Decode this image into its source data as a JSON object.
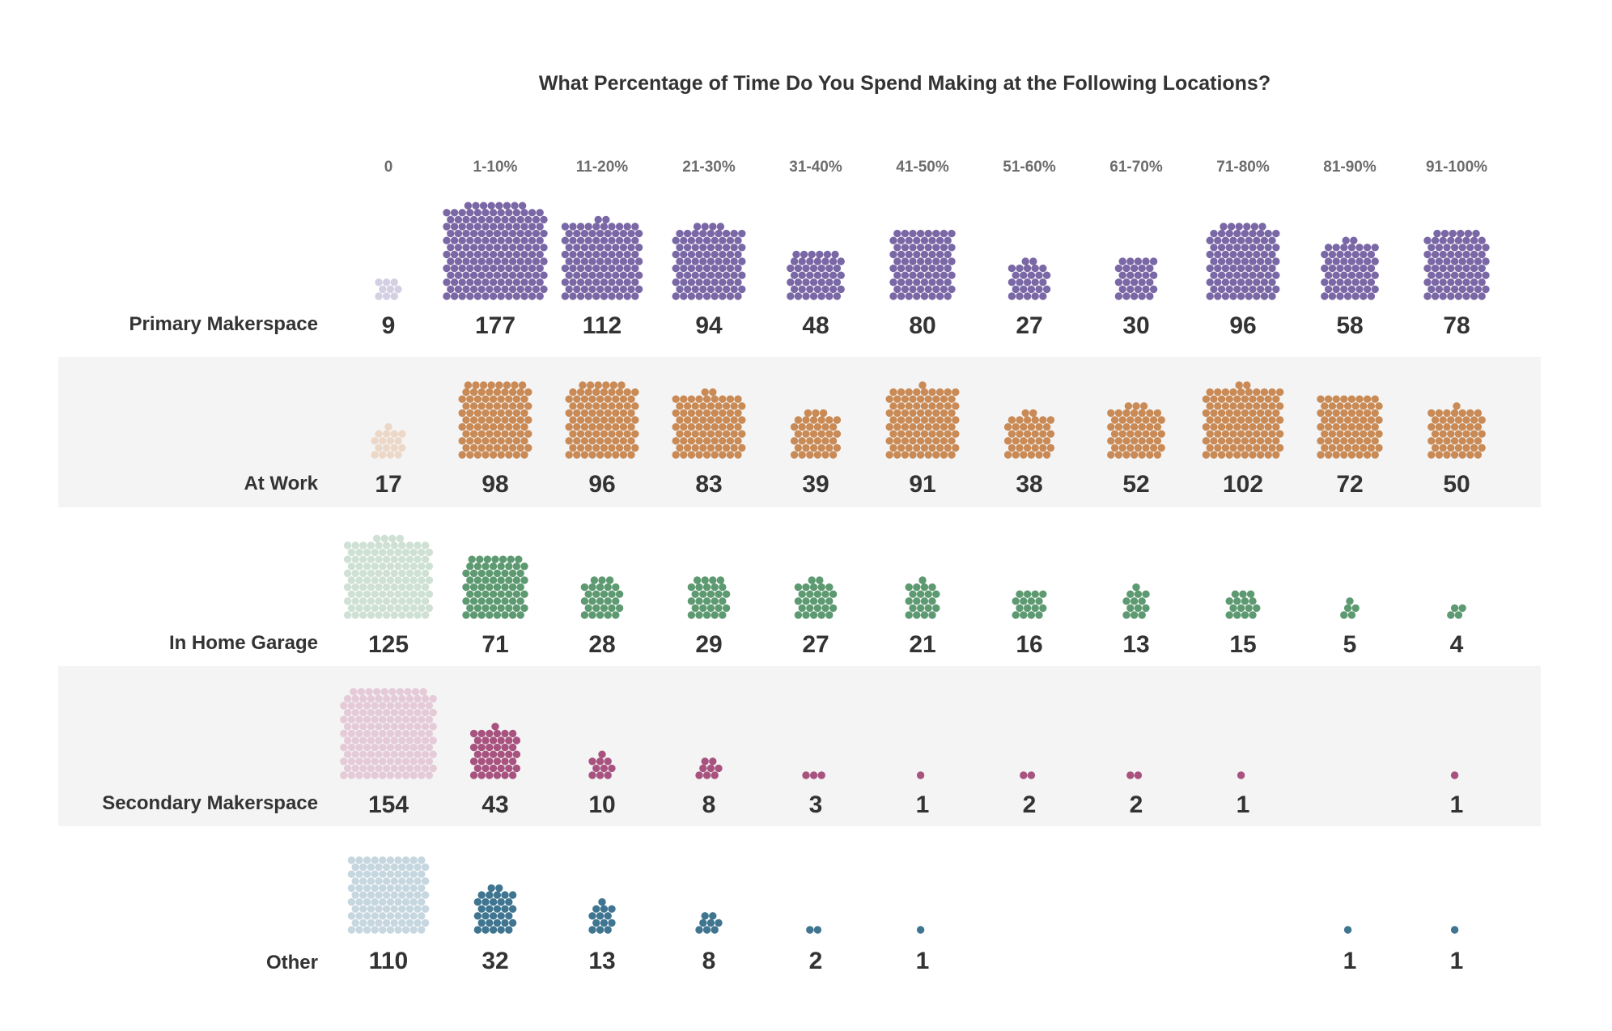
{
  "chart_data": {
    "type": "dot-grid",
    "title": "What Percentage of Time Do You Spend Making at the Following Locations?",
    "categories": [
      "0",
      "1-10%",
      "11-20%",
      "21-30%",
      "31-40%",
      "41-50%",
      "51-60%",
      "61-70%",
      "71-80%",
      "81-90%",
      "91-100%"
    ],
    "series": [
      {
        "name": "Primary Makerspace",
        "color": "#7a68a6",
        "zero_color": "#d5cfe4",
        "shaded": false,
        "values": [
          9,
          177,
          112,
          94,
          48,
          80,
          27,
          30,
          96,
          58,
          78
        ]
      },
      {
        "name": "At Work",
        "color": "#c98a55",
        "zero_color": "#edd8c8",
        "shaded": true,
        "values": [
          17,
          98,
          96,
          83,
          39,
          91,
          38,
          52,
          102,
          72,
          50
        ]
      },
      {
        "name": "In Home Garage",
        "color": "#5e9a71",
        "zero_color": "#cfe1d4",
        "shaded": false,
        "values": [
          125,
          71,
          28,
          29,
          27,
          21,
          16,
          13,
          15,
          5,
          4
        ]
      },
      {
        "name": "Secondary Makerspace",
        "color": "#a8537f",
        "zero_color": "#e5cbd8",
        "shaded": true,
        "values": [
          154,
          43,
          10,
          8,
          3,
          1,
          2,
          2,
          1,
          0,
          1
        ]
      },
      {
        "name": "Other",
        "color": "#3f7590",
        "zero_color": "#c6d7e0",
        "shaded": false,
        "values": [
          110,
          32,
          13,
          8,
          2,
          1,
          0,
          0,
          0,
          1,
          1
        ]
      }
    ],
    "band_color": "#f4f4f4",
    "zero_values_hidden": true
  }
}
